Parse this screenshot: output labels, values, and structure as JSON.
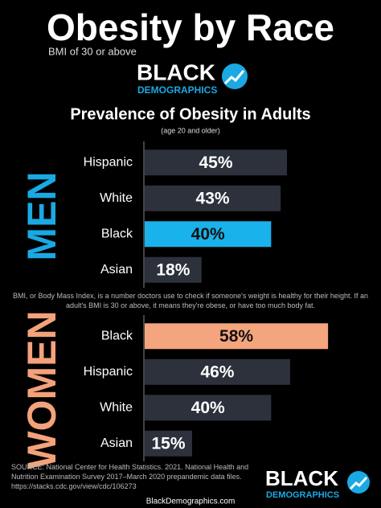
{
  "title": "Obesity by Race",
  "subtitle": "BMI of 30 or above",
  "logo": {
    "top": "BLACK",
    "bottom": "DEMOGRAPHICS"
  },
  "heading": "Prevalence of Obesity in Adults",
  "subheading": "(age 20 and older)",
  "note": "BMI, or Body Mass Index, is a number doctors use to check if someone's weight is healthy for their height. If an adult's BMI is 30 or above, it means they're obese, or have too much body fat.",
  "source": "SOURCE: National Center for Health Statistics. 2021. National Health and Nutrition Examination Survey 2017–March 2020 prepandemic data files. https://stacks.cdc.gov/view/cdc/106273",
  "website": "BlackDemographics.com",
  "chart_data": [
    {
      "type": "bar",
      "orientation": "horizontal",
      "group_label": "MEN",
      "group_color": "#1aa9e3",
      "categories": [
        "Hispanic",
        "White",
        "Black",
        "Asian"
      ],
      "values": [
        45,
        43,
        40,
        18
      ],
      "value_labels": [
        "45%",
        "43%",
        "40%",
        "18%"
      ],
      "colors": [
        "#2c313c",
        "#2c313c",
        "#19b2ea",
        "#2c313c"
      ],
      "xlim": [
        0,
        60
      ]
    },
    {
      "type": "bar",
      "orientation": "horizontal",
      "group_label": "WOMEN",
      "group_color": "#f3a27b",
      "categories": [
        "Black",
        "Hispanic",
        "White",
        "Asian"
      ],
      "values": [
        58,
        46,
        40,
        15
      ],
      "value_labels": [
        "58%",
        "46%",
        "40%",
        "15%"
      ],
      "colors": [
        "#f4a57d",
        "#2c313c",
        "#2c313c",
        "#2c313c"
      ],
      "xlim": [
        0,
        60
      ]
    }
  ]
}
